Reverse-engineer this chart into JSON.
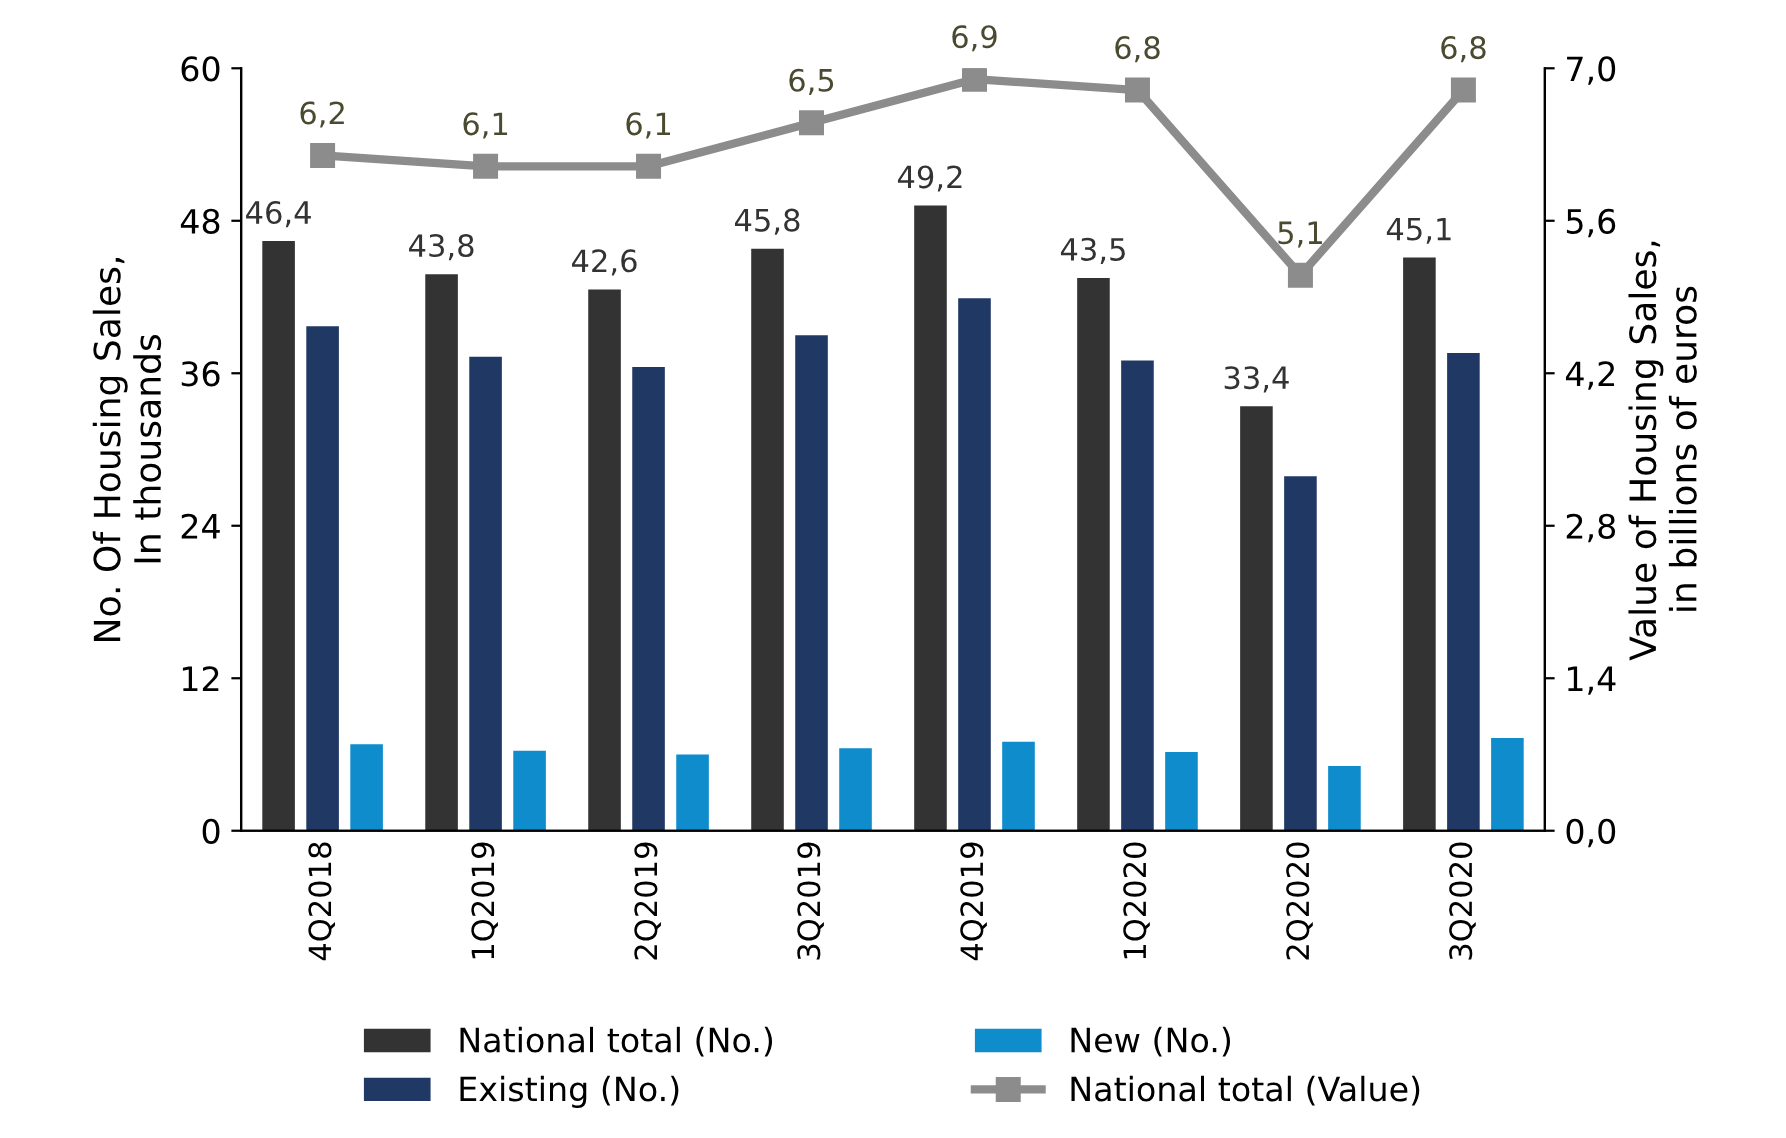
{
  "chart_data": {
    "type": "bar",
    "categories": [
      "4Q2018",
      "1Q2019",
      "2Q2019",
      "3Q2019",
      "4Q2019",
      "1Q2020",
      "2Q2020",
      "3Q2020"
    ],
    "ylabel": "No. Of Housing Sales,\nIn thousands",
    "y2label": "Value of Housing Sales,\nin billions of euros",
    "ylim": [
      0,
      60
    ],
    "yticks": [
      0,
      12,
      24,
      36,
      48,
      60
    ],
    "y2lim": [
      0,
      7
    ],
    "y2ticks": [
      {
        "value": 0,
        "label": "0,0"
      },
      {
        "value": 1.4,
        "label": "1,4"
      },
      {
        "value": 2.8,
        "label": "2,8"
      },
      {
        "value": 4.2,
        "label": "4,2"
      },
      {
        "value": 5.6,
        "label": "5,6"
      },
      {
        "value": 7,
        "label": "7,0"
      }
    ],
    "grid": false,
    "legend": "bottom",
    "series": [
      {
        "name": "National total (No.)",
        "color": "#333333",
        "values": [
          46.4,
          43.8,
          42.6,
          45.8,
          49.2,
          43.5,
          33.4,
          45.1
        ],
        "value_labels": [
          "46,4",
          "43,8",
          "42,6",
          "45,8",
          "49,2",
          "43,5",
          "33,4",
          "45,1"
        ]
      },
      {
        "name": "Existing (No.)",
        "color": "#1f3864",
        "values": [
          39.7,
          37.3,
          36.5,
          39.0,
          41.9,
          37.0,
          27.9,
          37.6
        ]
      },
      {
        "name": "New (No.)",
        "color": "#0e8ccc",
        "values": [
          6.8,
          6.3,
          6.0,
          6.5,
          7.0,
          6.2,
          5.1,
          7.3
        ]
      },
      {
        "name": "National total (Value)",
        "type": "line",
        "axis": "y2",
        "color": "#8c8c8c",
        "marker": "square",
        "line_style": "solid",
        "values": [
          6.2,
          6.1,
          6.1,
          6.5,
          6.9,
          6.8,
          5.1,
          6.8
        ],
        "value_labels": [
          "6,2",
          "6,1",
          "6,1",
          "6,5",
          "6,9",
          "6,8",
          "5,1",
          "6,8"
        ]
      }
    ]
  }
}
